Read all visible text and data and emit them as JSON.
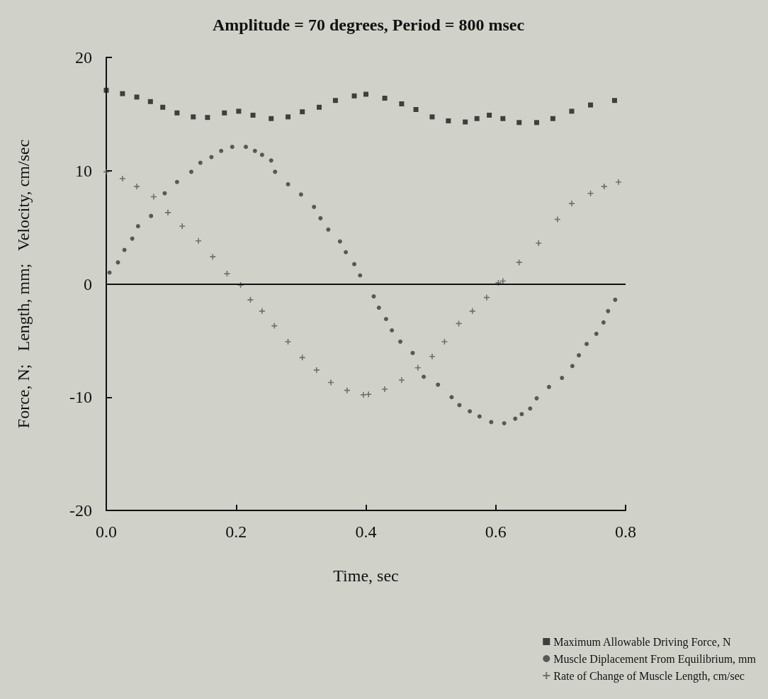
{
  "chart_data": {
    "type": "scatter",
    "title": "Amplitude = 70 degrees, Period = 800 msec",
    "xlabel": "Time, sec",
    "ylabel": "Force, N;   Length, mm;   Velocity, cm/sec",
    "xlim": [
      0,
      0.8
    ],
    "xticks": [
      {
        "value": 0,
        "label": "0.0"
      },
      0.2,
      0.4,
      0.6,
      0.8
    ],
    "ylim": [
      -20,
      20
    ],
    "yticks": [
      -20,
      -10,
      0,
      10,
      20
    ],
    "grid": false,
    "legend": "bottom right",
    "ref_lines": [
      {
        "axis": "y",
        "value": 0,
        "color": "#111111"
      }
    ],
    "series": [
      {
        "name": "Maximum Allowable Driving Force, N",
        "color": "#1a1a1a",
        "marker": "square",
        "x": [
          0,
          0.025,
          0.047,
          0.068,
          0.087,
          0.109,
          0.134,
          0.156,
          0.182,
          0.204,
          0.226,
          0.254,
          0.28,
          0.302,
          0.328,
          0.353,
          0.382,
          0.4,
          0.429,
          0.455,
          0.477,
          0.502,
          0.527,
          0.553,
          0.571,
          0.59,
          0.611,
          0.636,
          0.663,
          0.688,
          0.717,
          0.746,
          0.783
        ],
        "values": [
          17.1,
          16.8,
          16.5,
          16.1,
          15.6,
          15.1,
          14.75,
          14.7,
          15.1,
          15.25,
          14.9,
          14.6,
          14.75,
          15.2,
          15.6,
          16.2,
          16.6,
          16.75,
          16.4,
          15.9,
          15.4,
          14.75,
          14.4,
          14.3,
          14.6,
          14.9,
          14.6,
          14.25,
          14.25,
          14.6,
          15.25,
          15.8,
          16.2
        ]
      },
      {
        "name": "Muscle Diplacement From Equilibrium, mm",
        "color": "#3a3a3a",
        "marker": "circle",
        "x": [
          0.005,
          0.018,
          0.028,
          0.04,
          0.049,
          0.069,
          0.09,
          0.109,
          0.131,
          0.145,
          0.162,
          0.177,
          0.194,
          0.215,
          0.229,
          0.24,
          0.254,
          0.26,
          0.28,
          0.3,
          0.32,
          0.33,
          0.342,
          0.36,
          0.369,
          0.382,
          0.391,
          0.412,
          0.42,
          0.431,
          0.44,
          0.453,
          0.472,
          0.489,
          0.511,
          0.532,
          0.544,
          0.56,
          0.575,
          0.593,
          0.613,
          0.63,
          0.64,
          0.653,
          0.663,
          0.682,
          0.702,
          0.718,
          0.728,
          0.74,
          0.755,
          0.766,
          0.773,
          0.784
        ],
        "values": [
          1.0,
          1.9,
          3.0,
          4.0,
          5.1,
          6.0,
          8.0,
          9.0,
          9.9,
          10.7,
          11.2,
          11.75,
          12.1,
          12.1,
          11.75,
          11.4,
          10.9,
          9.9,
          8.8,
          7.9,
          6.8,
          5.8,
          4.8,
          3.75,
          2.8,
          1.75,
          0.75,
          -1.1,
          -2.1,
          -3.1,
          -4.1,
          -5.1,
          -6.1,
          -8.2,
          -8.9,
          -10,
          -10.7,
          -11.25,
          -11.7,
          -12.2,
          -12.3,
          -11.9,
          -11.5,
          -11,
          -10.1,
          -9.1,
          -8.3,
          -7.25,
          -6.3,
          -5.3,
          -4.4,
          -3.4,
          -2.4,
          -1.4
        ]
      },
      {
        "name": "Rate of Change of Muscle Length, cm/sec",
        "color": "#555555",
        "marker": "cross",
        "x": [
          0,
          0.025,
          0.047,
          0.073,
          0.095,
          0.117,
          0.142,
          0.164,
          0.186,
          0.207,
          0.222,
          0.24,
          0.259,
          0.28,
          0.302,
          0.324,
          0.346,
          0.371,
          0.396,
          0.404,
          0.429,
          0.455,
          0.48,
          0.502,
          0.521,
          0.543,
          0.564,
          0.586,
          0.604,
          0.611,
          0.636,
          0.666,
          0.695,
          0.717,
          0.746,
          0.767,
          0.789
        ],
        "values": [
          9.9,
          9.3,
          8.6,
          7.7,
          6.3,
          5.1,
          3.8,
          2.4,
          0.9,
          -0.1,
          -1.4,
          -2.4,
          -3.7,
          -5.1,
          -6.5,
          -7.6,
          -8.7,
          -9.4,
          -9.8,
          -9.75,
          -9.3,
          -8.5,
          -7.4,
          -6.4,
          -5.1,
          -3.5,
          -2.4,
          -1.2,
          0.1,
          0.25,
          1.9,
          3.6,
          5.7,
          7.1,
          8.0,
          8.6,
          9.0
        ]
      }
    ]
  }
}
